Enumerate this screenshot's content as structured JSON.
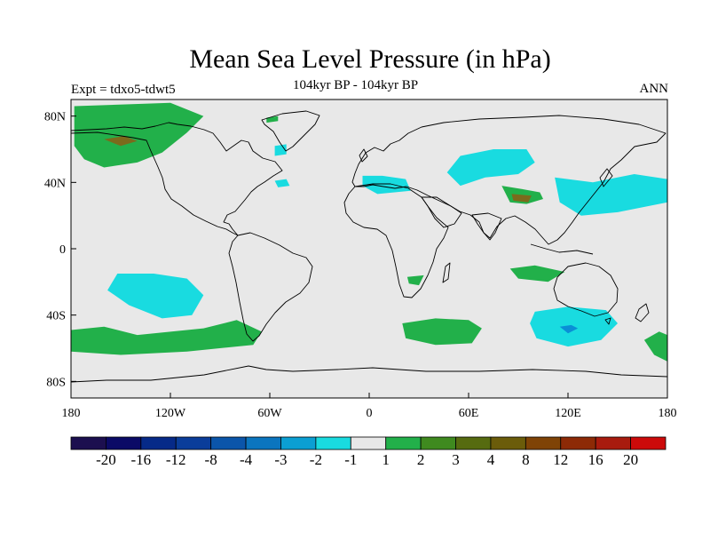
{
  "title": "Mean Sea Level Pressure (in hPa)",
  "subtitle": "104kyr BP - 104kyr BP",
  "left_label": "Expt = tdxo5-tdwt5",
  "right_label": "ANN",
  "colors": {
    "background": "#e8e8e8",
    "cyan": "#19dbe0",
    "green": "#22b04a",
    "brown": "#7b6a1c",
    "blue": "#0a8fd6",
    "coast": "#000000"
  },
  "icons": [
    "world-coastline-map",
    "color-scale-bar"
  ],
  "chart_data": {
    "type": "heatmap",
    "title": "Mean Sea Level Pressure (in hPa)",
    "units": "hPa",
    "projection": "cylindrical-equidistant",
    "xlim": [
      -180,
      180
    ],
    "ylim": [
      -90,
      90
    ],
    "x_ticks": [
      {
        "value": -180,
        "label": "180"
      },
      {
        "value": -120,
        "label": "120W"
      },
      {
        "value": -60,
        "label": "60W"
      },
      {
        "value": 0,
        "label": "0"
      },
      {
        "value": 60,
        "label": "60E"
      },
      {
        "value": 120,
        "label": "120E"
      },
      {
        "value": 180,
        "label": "180"
      }
    ],
    "y_ticks": [
      {
        "value": 80,
        "label": "80N"
      },
      {
        "value": 40,
        "label": "40N"
      },
      {
        "value": 0,
        "label": "0"
      },
      {
        "value": -40,
        "label": "40S"
      },
      {
        "value": -80,
        "label": "80S"
      }
    ],
    "colorbar": {
      "colors": [
        "#1c0f4f",
        "#0b0a66",
        "#062a88",
        "#0a3d9a",
        "#0b55aa",
        "#0b75bf",
        "#0b9fd3",
        "#19dbe0",
        "#e8e8e8",
        "#22b04a",
        "#3f8a1f",
        "#566b10",
        "#6b5c0a",
        "#7f4306",
        "#8d2a06",
        "#a81b0e",
        "#cc0a0a"
      ],
      "labels": [
        "-20",
        "-16",
        "-12",
        "-8",
        "-4",
        "-3",
        "-2",
        "-1",
        "1",
        "2",
        "3",
        "4",
        "8",
        "12",
        "16",
        "20"
      ]
    },
    "regions": [
      {
        "name": "north-pacific-positive",
        "level": 2,
        "points": [
          [
            -178,
            86
          ],
          [
            -120,
            88
          ],
          [
            -100,
            80
          ],
          [
            -110,
            70
          ],
          [
            -125,
            58
          ],
          [
            -140,
            52
          ],
          [
            -160,
            49
          ],
          [
            -172,
            54
          ],
          [
            -178,
            62
          ]
        ]
      },
      {
        "name": "alaska-high-core",
        "level": 3,
        "points": [
          [
            -160,
            66
          ],
          [
            -148,
            68
          ],
          [
            -140,
            65
          ],
          [
            -150,
            62
          ]
        ]
      },
      {
        "name": "south-pacific-negative",
        "level": -1,
        "points": [
          [
            -152,
            -15
          ],
          [
            -130,
            -15
          ],
          [
            -110,
            -18
          ],
          [
            -100,
            -28
          ],
          [
            -107,
            -40
          ],
          [
            -125,
            -42
          ],
          [
            -145,
            -34
          ],
          [
            -158,
            -25
          ]
        ]
      },
      {
        "name": "southern-ocean-positive-west",
        "level": 2,
        "points": [
          [
            -180,
            -49
          ],
          [
            -160,
            -47
          ],
          [
            -140,
            -52
          ],
          [
            -100,
            -48
          ],
          [
            -80,
            -43
          ],
          [
            -65,
            -50
          ],
          [
            -70,
            -58
          ],
          [
            -110,
            -62
          ],
          [
            -150,
            -64
          ],
          [
            -180,
            -62
          ]
        ]
      },
      {
        "name": "southern-ocean-positive-east",
        "level": 2,
        "points": [
          [
            166,
            -55
          ],
          [
            175,
            -50
          ],
          [
            180,
            -52
          ],
          [
            180,
            -68
          ],
          [
            172,
            -64
          ]
        ]
      },
      {
        "name": "south-indian-positive",
        "level": 2,
        "points": [
          [
            20,
            -45
          ],
          [
            40,
            -42
          ],
          [
            60,
            -43
          ],
          [
            68,
            -48
          ],
          [
            62,
            -57
          ],
          [
            40,
            -58
          ],
          [
            22,
            -54
          ]
        ]
      },
      {
        "name": "australia-negative",
        "level": -1,
        "points": [
          [
            100,
            -38
          ],
          [
            120,
            -35
          ],
          [
            143,
            -37
          ],
          [
            150,
            -45
          ],
          [
            140,
            -55
          ],
          [
            120,
            -59
          ],
          [
            101,
            -54
          ],
          [
            97,
            -45
          ]
        ]
      },
      {
        "name": "australia-low-core",
        "level": -2,
        "points": [
          [
            115,
            -47
          ],
          [
            122,
            -46
          ],
          [
            126,
            -48
          ],
          [
            120,
            -51
          ]
        ]
      },
      {
        "name": "indian-ocean-positive",
        "level": 2,
        "points": [
          [
            85,
            -12
          ],
          [
            100,
            -10
          ],
          [
            118,
            -14
          ],
          [
            108,
            -20
          ],
          [
            90,
            -18
          ]
        ]
      },
      {
        "name": "africa-positive",
        "level": 2,
        "points": [
          [
            23,
            -17
          ],
          [
            33,
            -16
          ],
          [
            30,
            -22
          ],
          [
            24,
            -21
          ]
        ]
      },
      {
        "name": "siberia-negative",
        "level": -1,
        "points": [
          [
            47,
            46
          ],
          [
            55,
            56
          ],
          [
            75,
            60
          ],
          [
            95,
            60
          ],
          [
            100,
            52
          ],
          [
            90,
            45
          ],
          [
            70,
            43
          ],
          [
            55,
            38
          ]
        ]
      },
      {
        "name": "tibet-positive",
        "level": 2,
        "points": [
          [
            80,
            38
          ],
          [
            92,
            36
          ],
          [
            103,
            34
          ],
          [
            105,
            30
          ],
          [
            95,
            27
          ],
          [
            85,
            28
          ]
        ]
      },
      {
        "name": "tibet-core",
        "level": 3,
        "points": [
          [
            86,
            33
          ],
          [
            98,
            32
          ],
          [
            96,
            28
          ],
          [
            87,
            29
          ]
        ]
      },
      {
        "name": "northwest-pacific-negative",
        "level": -1,
        "points": [
          [
            112,
            43
          ],
          [
            135,
            40
          ],
          [
            160,
            45
          ],
          [
            180,
            42
          ],
          [
            180,
            28
          ],
          [
            150,
            22
          ],
          [
            128,
            20
          ],
          [
            115,
            28
          ]
        ]
      },
      {
        "name": "mediterranean-negative",
        "level": -1,
        "points": [
          [
            -4,
            44
          ],
          [
            8,
            44
          ],
          [
            22,
            42
          ],
          [
            25,
            35
          ],
          [
            5,
            33
          ],
          [
            -4,
            38
          ]
        ]
      },
      {
        "name": "atlantic-negative",
        "level": -1,
        "points": [
          [
            -57,
            41
          ],
          [
            -50,
            42
          ],
          [
            -48,
            38
          ],
          [
            -55,
            37
          ]
        ]
      },
      {
        "name": "labrador-positive",
        "level": 2,
        "points": [
          [
            -62,
            79
          ],
          [
            -55,
            80
          ],
          [
            -55,
            77
          ],
          [
            -62,
            76
          ]
        ]
      },
      {
        "name": "baffin-negative",
        "level": -1,
        "points": [
          [
            -57,
            62
          ],
          [
            -50,
            63
          ],
          [
            -50,
            57
          ],
          [
            -57,
            56
          ]
        ]
      }
    ]
  }
}
